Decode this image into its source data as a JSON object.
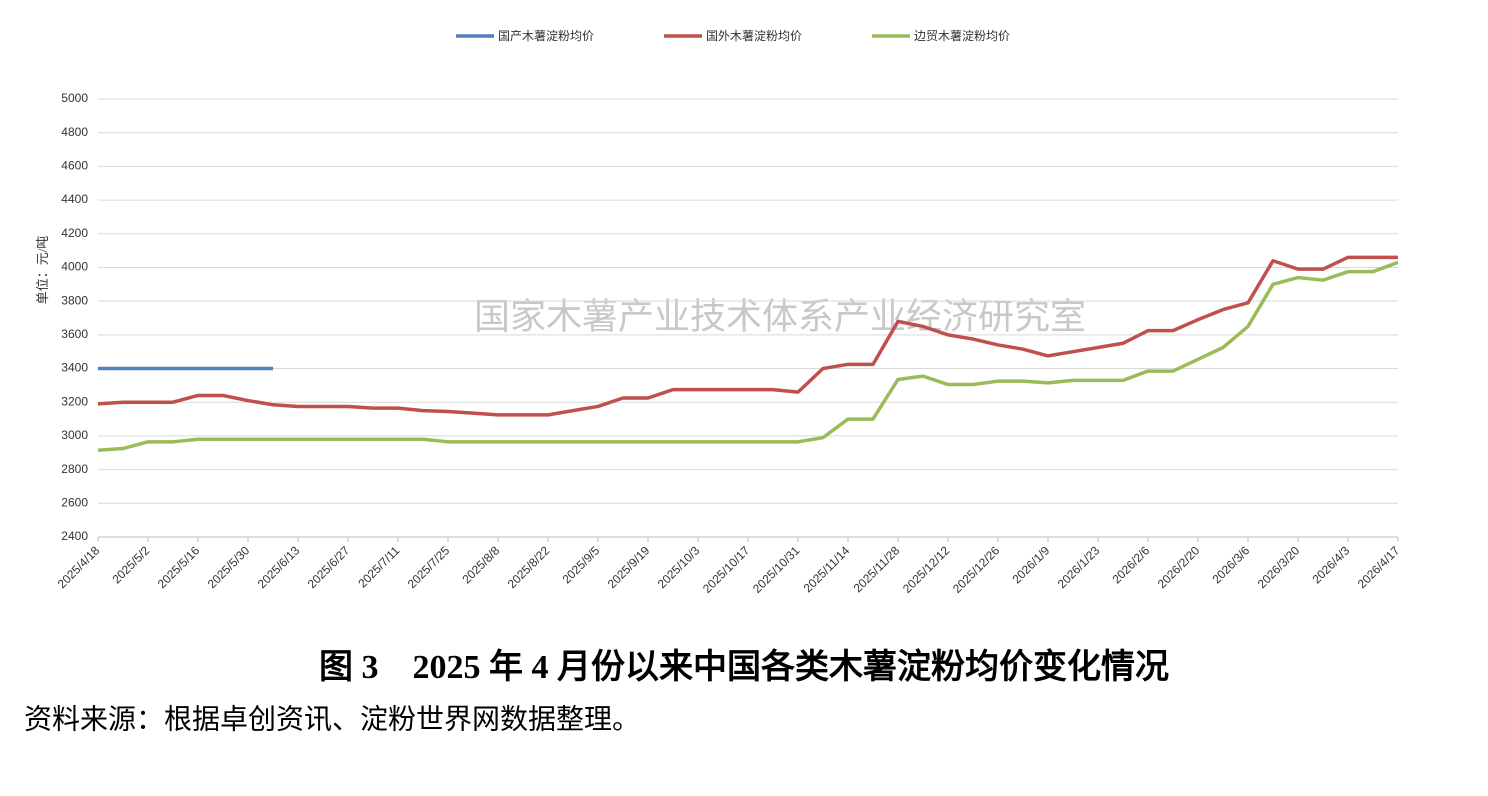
{
  "chart_data": {
    "type": "line",
    "title": "图 3　2025 年 4 月份以来中国各类木薯淀粉均价变化情况",
    "source": "资料来源：根据卓创资讯、淀粉世界网数据整理。",
    "watermark": "国家木薯产业技术体系产业经济研究室",
    "y_label": "单位：元/吨",
    "categories": [
      "2025/4/18",
      null,
      "2025/5/2",
      null,
      "2025/5/16",
      null,
      "2025/5/30",
      null,
      "2025/6/13",
      null,
      "2025/6/27",
      null,
      "2025/7/11",
      null,
      "2025/7/25",
      null,
      "2025/8/8",
      null,
      "2025/8/22",
      null,
      "2025/9/5",
      null,
      "2025/9/19",
      null,
      "2025/10/3",
      null,
      "2025/10/17",
      null,
      "2025/10/31",
      null,
      "2025/11/14",
      null,
      "2025/11/28",
      null,
      "2025/12/12",
      null,
      "2025/12/26",
      null,
      "2026/1/9",
      null,
      "2026/1/23",
      null,
      "2026/2/6",
      null,
      "2026/2/20",
      null,
      "2026/3/6",
      null,
      "2026/3/20",
      null,
      "2026/4/3",
      null,
      "2026/4/17"
    ],
    "series": [
      {
        "name": "国产木薯淀粉均价",
        "color": "#4f81bd",
        "values": [
          3400,
          3400,
          3400,
          3400,
          3400,
          3400,
          3400,
          3400,
          null,
          null,
          null,
          null,
          null,
          null,
          null,
          null,
          null,
          null,
          null,
          null,
          null,
          null,
          null,
          null,
          null,
          null,
          null,
          null,
          null,
          null,
          null,
          null,
          null,
          null,
          null,
          null,
          null,
          null,
          null,
          null,
          null,
          null,
          null,
          null,
          null,
          null,
          null,
          null,
          null,
          null,
          null,
          null,
          null
        ]
      },
      {
        "name": "国外木薯淀粉均价",
        "color": "#c0504d",
        "values": [
          3190,
          3200,
          3200,
          3200,
          3240,
          3240,
          3210,
          3185,
          3175,
          3175,
          3175,
          3165,
          3165,
          3150,
          3145,
          3135,
          3125,
          3125,
          3125,
          3150,
          3175,
          3225,
          3225,
          3275,
          3275,
          3275,
          3275,
          3275,
          3260,
          3400,
          3425,
          3425,
          3680,
          3650,
          3600,
          3575,
          3540,
          3515,
          3475,
          3500,
          3525,
          3550,
          3625,
          3625,
          3690,
          3750,
          3790,
          4040,
          3990,
          3990,
          4060,
          4060,
          4060
        ]
      },
      {
        "name": "边贸木薯淀粉均价",
        "color": "#9bbb59",
        "values": [
          2915,
          2925,
          2965,
          2965,
          2980,
          2980,
          2980,
          2980,
          2980,
          2980,
          2980,
          2980,
          2980,
          2980,
          2965,
          2965,
          2965,
          2965,
          2965,
          2965,
          2965,
          2965,
          2965,
          2965,
          2965,
          2965,
          2965,
          2965,
          2965,
          2990,
          3100,
          3100,
          3335,
          3355,
          3305,
          3305,
          3325,
          3325,
          3315,
          3330,
          3330,
          3330,
          3385,
          3385,
          3455,
          3525,
          3650,
          3900,
          3940,
          3925,
          3975,
          3975,
          4030
        ]
      }
    ],
    "ylim": [
      2400,
      5000
    ],
    "yticks": [
      2400,
      2600,
      2800,
      3000,
      3200,
      3400,
      3600,
      3800,
      4000,
      4200,
      4400,
      4600,
      4800,
      5000
    ],
    "grid": true,
    "legend": "top"
  }
}
